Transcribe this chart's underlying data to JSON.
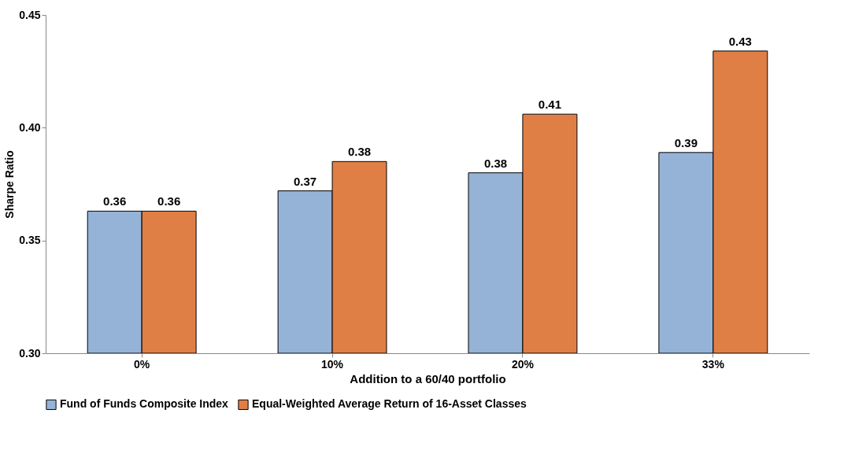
{
  "chart_data": {
    "type": "bar",
    "xlabel": "Addition to a 60/40 portfolio",
    "ylabel": "Sharpe Ratio",
    "categories": [
      "0%",
      "10%",
      "20%",
      "33%"
    ],
    "series": [
      {
        "name": "Fund of Funds Composite Index",
        "color": "#95b3d7",
        "values": [
          0.363,
          0.372,
          0.38,
          0.389
        ],
        "value_labels": [
          "0.36",
          "0.37",
          "0.38",
          "0.39"
        ]
      },
      {
        "name": "Equal-Weighted Average Return of 16-Asset Classes",
        "color": "#e07f45",
        "values": [
          0.363,
          0.385,
          0.406,
          0.434
        ],
        "value_labels": [
          "0.36",
          "0.38",
          "0.41",
          "0.43"
        ]
      }
    ],
    "ylim": [
      0.3,
      0.45
    ],
    "yticks": [
      {
        "value": 0.3,
        "label": "0.30"
      },
      {
        "value": 0.35,
        "label": "0.35"
      },
      {
        "value": 0.4,
        "label": "0.40"
      },
      {
        "value": 0.45,
        "label": "0.45"
      }
    ],
    "grid": false,
    "legend": "bottom"
  }
}
